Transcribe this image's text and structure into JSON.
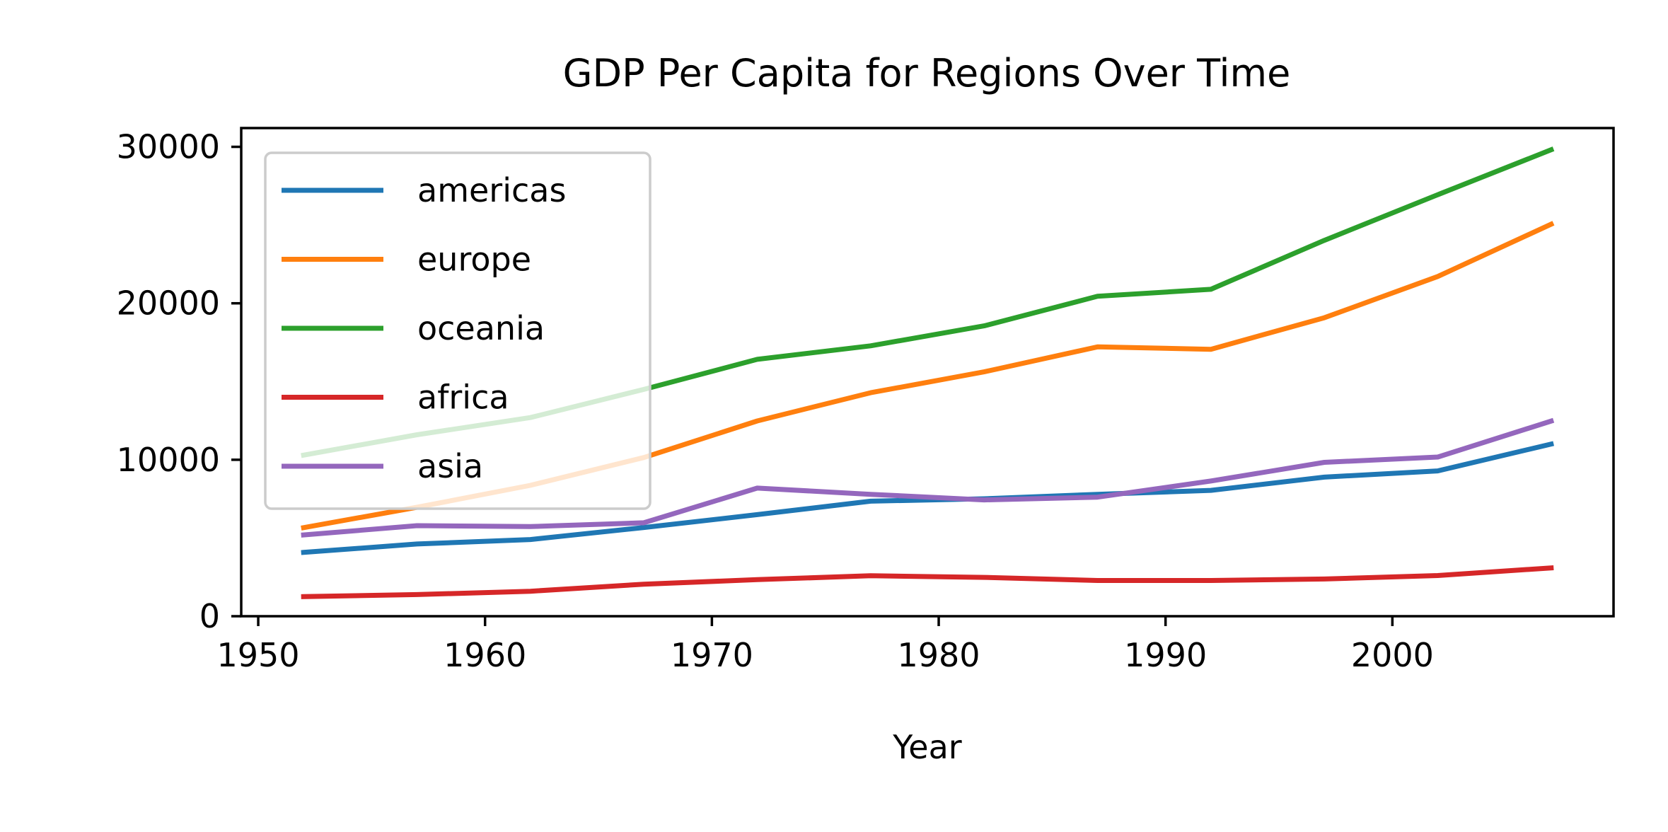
{
  "chart_data": {
    "type": "line",
    "title": "GDP Per Capita for Regions Over Time",
    "xlabel": "Year",
    "ylabel": "",
    "x": [
      1952,
      1957,
      1962,
      1967,
      1972,
      1977,
      1982,
      1987,
      1992,
      1997,
      2002,
      2007
    ],
    "xlim": [
      1949.25,
      2009.75
    ],
    "ylim": [
      0,
      31200
    ],
    "xticks": [
      1950,
      1960,
      1970,
      1980,
      1990,
      2000
    ],
    "yticks": [
      0,
      10000,
      20000,
      30000
    ],
    "grid": false,
    "legend_position": "upper left",
    "series": [
      {
        "name": "americas",
        "color": "#1f77b4",
        "values": [
          4079,
          4616,
          4902,
          5668,
          6491,
          7352,
          7507,
          7793,
          8045,
          8889,
          9288,
          11003
        ]
      },
      {
        "name": "europe",
        "color": "#ff7f0e",
        "values": [
          5661,
          6963,
          8365,
          10143,
          12480,
          14284,
          15618,
          17214,
          17062,
          19077,
          21712,
          25054
        ]
      },
      {
        "name": "oceania",
        "color": "#2ca02c",
        "values": [
          10298,
          11599,
          12696,
          14496,
          16417,
          17284,
          18555,
          20448,
          20894,
          24024,
          26939,
          29810
        ]
      },
      {
        "name": "africa",
        "color": "#d62728",
        "values": [
          1253,
          1385,
          1598,
          2050,
          2340,
          2586,
          2482,
          2283,
          2282,
          2379,
          2599,
          3089
        ]
      },
      {
        "name": "asia",
        "color": "#9467bd",
        "values": [
          5195,
          5788,
          5729,
          5971,
          8187,
          7791,
          7434,
          7608,
          8640,
          9834,
          10174,
          12473
        ]
      }
    ]
  }
}
